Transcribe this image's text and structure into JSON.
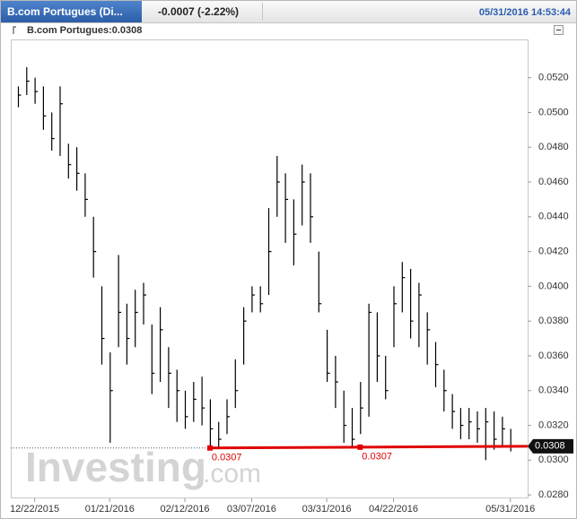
{
  "chart_data": {
    "type": "hlc",
    "title": "B.com Portugues (Di...",
    "subtitle": "-0.0007 (-2.22%)",
    "timestamp": "05/31/2016 14:53:44",
    "series_label": "B.com Portugues:0.0308",
    "watermark": "Investing",
    "watermark_suffix": ".com",
    "color": "#000000",
    "categories": [
      null,
      null,
      "12/22/2015",
      null,
      null,
      null,
      null,
      null,
      null,
      null,
      null,
      "01/21/2016",
      null,
      null,
      null,
      null,
      null,
      null,
      null,
      null,
      "02/12/2016",
      null,
      null,
      null,
      null,
      null,
      null,
      null,
      "03/07/2016",
      null,
      null,
      null,
      null,
      null,
      null,
      null,
      null,
      "03/31/2016",
      null,
      null,
      null,
      null,
      null,
      null,
      null,
      "04/22/2016",
      null,
      null,
      null,
      null,
      null,
      null,
      null,
      null,
      null,
      null,
      null,
      null,
      null,
      "05/31/2016"
    ],
    "high": [
      0.0515,
      0.0526,
      0.052,
      0.0515,
      0.05,
      0.0515,
      0.0482,
      0.048,
      0.0465,
      0.044,
      0.04,
      0.0362,
      0.0418,
      0.039,
      0.0398,
      0.0402,
      0.0378,
      0.0388,
      0.0365,
      0.0352,
      0.034,
      0.0345,
      0.0348,
      0.0335,
      0.0322,
      0.0335,
      0.0358,
      0.0388,
      0.04,
      0.04,
      0.0445,
      0.0475,
      0.0465,
      0.045,
      0.047,
      0.0465,
      0.042,
      0.0375,
      0.036,
      0.034,
      0.033,
      0.0345,
      0.039,
      0.0385,
      0.036,
      0.04,
      0.0414,
      0.041,
      0.0402,
      0.0385,
      0.0368,
      0.0352,
      0.0338,
      0.033,
      0.033,
      0.0328,
      0.033,
      0.0328,
      0.0325,
      0.0318
    ],
    "low": [
      0.0503,
      0.051,
      0.0505,
      0.049,
      0.0478,
      0.0475,
      0.0462,
      0.0455,
      0.044,
      0.0405,
      0.0355,
      0.031,
      0.0365,
      0.0355,
      0.0365,
      0.0378,
      0.0338,
      0.0345,
      0.033,
      0.0322,
      0.0318,
      0.0322,
      0.032,
      0.0307,
      0.0307,
      0.0315,
      0.033,
      0.0355,
      0.0385,
      0.0385,
      0.0395,
      0.044,
      0.0425,
      0.0412,
      0.0435,
      0.0425,
      0.0385,
      0.0345,
      0.033,
      0.031,
      0.0307,
      0.0315,
      0.0325,
      0.0345,
      0.0335,
      0.0365,
      0.0385,
      0.037,
      0.0365,
      0.0355,
      0.0342,
      0.0328,
      0.0318,
      0.0312,
      0.0312,
      0.031,
      0.03,
      0.0306,
      0.0308,
      0.0305
    ],
    "close": [
      0.051,
      0.0518,
      0.0512,
      0.0498,
      0.0485,
      0.0505,
      0.047,
      0.0465,
      0.045,
      0.042,
      0.037,
      0.034,
      0.0385,
      0.037,
      0.0385,
      0.0395,
      0.035,
      0.0375,
      0.035,
      0.034,
      0.0325,
      0.0335,
      0.033,
      0.0318,
      0.0312,
      0.0325,
      0.034,
      0.038,
      0.0395,
      0.039,
      0.042,
      0.046,
      0.045,
      0.043,
      0.046,
      0.044,
      0.039,
      0.035,
      0.0345,
      0.032,
      0.0312,
      0.033,
      0.0385,
      0.036,
      0.034,
      0.039,
      0.0405,
      0.038,
      0.0395,
      0.0375,
      0.0355,
      0.034,
      0.0328,
      0.032,
      0.0322,
      0.0318,
      0.0322,
      0.0312,
      0.0318,
      0.0308
    ],
    "last": {
      "value": 0.0308,
      "label": "0.0308"
    },
    "trend_line": {
      "color": "#e00000",
      "values": [
        0.0307,
        0.0307
      ],
      "value_labels": [
        "0.0307",
        "0.0307"
      ]
    },
    "ylim": [
      0.0278,
      0.0542
    ],
    "yticks": [
      {
        "value": 0.028,
        "label": "0.0280"
      },
      {
        "value": 0.03,
        "label": "0.0300"
      },
      {
        "value": 0.032,
        "label": "0.0320"
      },
      {
        "value": 0.034,
        "label": "0.0340"
      },
      {
        "value": 0.036,
        "label": "0.0360"
      },
      {
        "value": 0.038,
        "label": "0.0380"
      },
      {
        "value": 0.04,
        "label": "0.0400"
      },
      {
        "value": 0.042,
        "label": "0.0420"
      },
      {
        "value": 0.044,
        "label": "0.0440"
      },
      {
        "value": 0.046,
        "label": "0.0460"
      },
      {
        "value": 0.048,
        "label": "0.0480"
      },
      {
        "value": 0.05,
        "label": "0.0500"
      },
      {
        "value": 0.052,
        "label": "0.0520"
      }
    ],
    "grid": false
  }
}
